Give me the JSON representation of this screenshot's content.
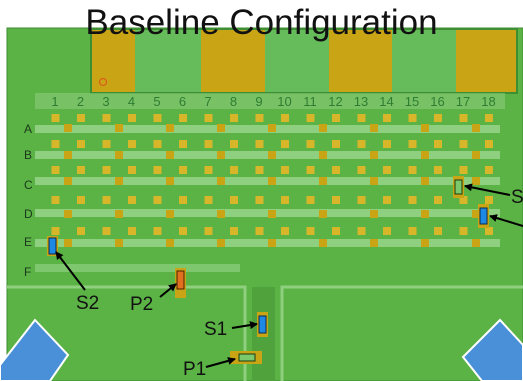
{
  "title": "Baseline Configuration",
  "columns": [
    "1",
    "2",
    "3",
    "4",
    "5",
    "6",
    "7",
    "8",
    "9",
    "10",
    "11",
    "12",
    "13",
    "14",
    "15",
    "16",
    "17",
    "18"
  ],
  "rows": [
    "A",
    "B",
    "C",
    "D",
    "E",
    "F"
  ],
  "colors": {
    "board": "#5bb245",
    "board_edge": "#3e8e33",
    "trace": "#8fd080",
    "pad": "#c9a515",
    "pad_light": "#d8b62a",
    "connector_green": "#66bb5a",
    "corner_blue": "#4a90d9",
    "sensor_blue": "#1e88e5",
    "actuator_orange": "#e07020",
    "pin_hole": "#d9601c"
  },
  "labels": {
    "s1": "S1",
    "s2": "S2",
    "s_right_top": "S",
    "p1": "P1",
    "p2": "P2"
  }
}
